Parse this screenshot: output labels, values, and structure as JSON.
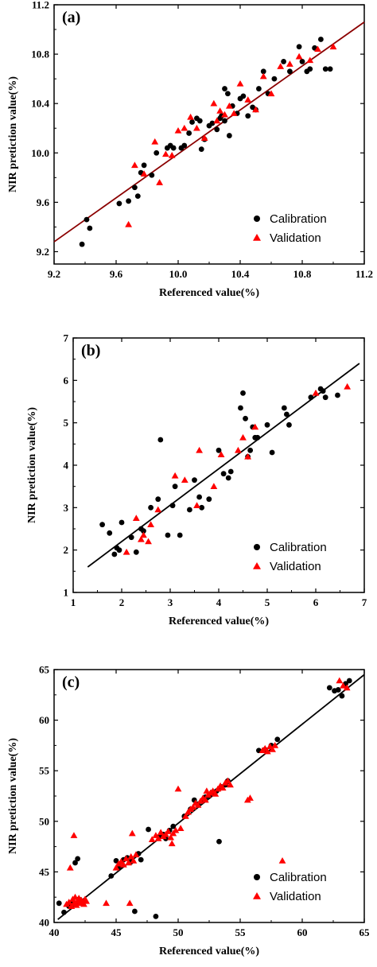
{
  "chart_data": [
    {
      "type": "scatter",
      "panel_label": "(a)",
      "xlabel": "Referenced value(%)",
      "ylabel": "NIR pretiction value(%)",
      "xlim": [
        9.2,
        11.2
      ],
      "ylim": [
        9.1,
        11.2
      ],
      "xticks": [
        "9.2",
        "9.6",
        "10.0",
        "10.4",
        "10.8",
        "11.2"
      ],
      "yticks": [
        "9.2",
        "9.6",
        "10.0",
        "10.4",
        "10.8",
        "11.2"
      ],
      "xtick_values": [
        9.2,
        9.6,
        10.0,
        10.4,
        10.8,
        11.2
      ],
      "ytick_values": [
        9.2,
        9.6,
        10.0,
        10.4,
        10.8,
        11.2
      ],
      "fit_line": {
        "x": [
          9.2,
          11.2
        ],
        "y": [
          9.28,
          11.06
        ],
        "color": "#8b0000"
      },
      "legend_position": "bottom-right",
      "series": [
        {
          "name": "Calibration",
          "marker": "circle",
          "color": "#000000",
          "x": [
            9.38,
            9.41,
            9.43,
            9.62,
            9.68,
            9.72,
            9.74,
            9.76,
            9.78,
            9.83,
            9.86,
            9.93,
            9.95,
            9.97,
            10.02,
            10.04,
            10.07,
            10.09,
            10.12,
            10.14,
            10.15,
            10.17,
            10.2,
            10.22,
            10.25,
            10.27,
            10.28,
            10.3,
            10.3,
            10.32,
            10.33,
            10.35,
            10.38,
            10.4,
            10.42,
            10.45,
            10.48,
            10.5,
            10.52,
            10.55,
            10.58,
            10.62,
            10.68,
            10.72,
            10.78,
            10.8,
            10.83,
            10.85,
            10.88,
            10.92,
            10.95,
            10.98
          ],
          "y": [
            9.26,
            9.46,
            9.39,
            9.59,
            9.61,
            9.72,
            9.65,
            9.84,
            9.9,
            9.82,
            10.0,
            10.04,
            10.06,
            10.04,
            10.04,
            10.06,
            10.16,
            10.25,
            10.28,
            10.26,
            10.03,
            10.11,
            10.22,
            10.24,
            10.19,
            10.28,
            10.3,
            10.26,
            10.52,
            10.48,
            10.14,
            10.38,
            10.32,
            10.44,
            10.46,
            10.3,
            10.37,
            10.35,
            10.52,
            10.66,
            10.48,
            10.6,
            10.74,
            10.66,
            10.86,
            10.74,
            10.66,
            10.68,
            10.85,
            10.92,
            10.68,
            10.68
          ]
        },
        {
          "name": "Validation",
          "marker": "triangle",
          "color": "#ff0000",
          "x": [
            9.68,
            9.72,
            9.78,
            9.85,
            9.88,
            9.92,
            9.96,
            10.0,
            10.04,
            10.08,
            10.12,
            10.17,
            10.23,
            10.25,
            10.27,
            10.3,
            10.33,
            10.36,
            10.4,
            10.45,
            10.5,
            10.55,
            10.6,
            10.66,
            10.72,
            10.78,
            10.85,
            10.9,
            11.0
          ],
          "y": [
            9.42,
            9.9,
            9.83,
            10.09,
            9.76,
            9.99,
            9.98,
            10.18,
            10.2,
            10.29,
            10.2,
            10.12,
            10.4,
            10.26,
            10.34,
            10.31,
            10.38,
            10.32,
            10.56,
            10.43,
            10.35,
            10.62,
            10.48,
            10.7,
            10.72,
            10.78,
            10.75,
            10.84,
            10.86
          ]
        }
      ]
    },
    {
      "type": "scatter",
      "panel_label": "(b)",
      "xlabel": "Referenced value(%)",
      "ylabel": "NIR pretiction value(%)",
      "xlim": [
        1,
        7
      ],
      "ylim": [
        1,
        7
      ],
      "xticks": [
        "1",
        "2",
        "3",
        "4",
        "5",
        "6",
        "7"
      ],
      "yticks": [
        "1",
        "2",
        "3",
        "4",
        "5",
        "6",
        "7"
      ],
      "xtick_values": [
        1,
        2,
        3,
        4,
        5,
        6,
        7
      ],
      "ytick_values": [
        1,
        2,
        3,
        4,
        5,
        6,
        7
      ],
      "fit_line": {
        "x": [
          1.3,
          6.9
        ],
        "y": [
          1.6,
          6.4
        ],
        "color": "#000000"
      },
      "legend_position": "bottom-right",
      "series": [
        {
          "name": "Calibration",
          "marker": "circle",
          "color": "#000000",
          "x": [
            1.6,
            1.75,
            1.85,
            1.9,
            1.95,
            2.0,
            2.2,
            2.3,
            2.4,
            2.45,
            2.6,
            2.75,
            2.8,
            2.95,
            3.05,
            3.1,
            3.2,
            3.4,
            3.5,
            3.6,
            3.65,
            3.8,
            4.0,
            4.1,
            4.2,
            4.25,
            4.45,
            4.5,
            4.55,
            4.6,
            4.65,
            4.7,
            4.75,
            4.8,
            5.0,
            5.1,
            5.35,
            5.4,
            5.45,
            5.9,
            6.1,
            6.15,
            6.2,
            6.45
          ],
          "y": [
            2.6,
            2.4,
            1.9,
            2.05,
            2.0,
            2.65,
            2.3,
            1.95,
            2.5,
            2.45,
            3.0,
            3.2,
            4.6,
            2.35,
            3.05,
            3.5,
            2.35,
            2.95,
            3.65,
            3.25,
            3.0,
            3.2,
            4.35,
            3.8,
            3.7,
            3.85,
            5.35,
            5.7,
            5.1,
            4.2,
            4.35,
            4.9,
            4.65,
            4.65,
            4.95,
            4.3,
            5.35,
            5.2,
            4.95,
            5.6,
            5.8,
            5.75,
            5.6,
            5.65
          ]
        },
        {
          "name": "Validation",
          "marker": "triangle",
          "color": "#ff0000",
          "x": [
            2.1,
            2.3,
            2.4,
            2.45,
            2.55,
            2.6,
            2.75,
            3.1,
            3.3,
            3.55,
            3.6,
            3.9,
            4.05,
            4.4,
            4.5,
            4.6,
            4.75,
            6.0,
            6.65
          ],
          "y": [
            1.95,
            2.75,
            2.25,
            2.35,
            2.2,
            2.6,
            2.95,
            3.75,
            3.65,
            3.05,
            4.35,
            3.5,
            4.25,
            4.35,
            4.65,
            4.2,
            4.9,
            5.7,
            5.85
          ]
        }
      ]
    },
    {
      "type": "scatter",
      "panel_label": "(c)",
      "xlabel": "Referenced value(%)",
      "ylabel": "NIR pretiction value(%)",
      "xlim": [
        40,
        65
      ],
      "ylim": [
        40,
        65
      ],
      "xticks": [
        "40",
        "45",
        "50",
        "55",
        "60",
        "65"
      ],
      "yticks": [
        "40",
        "45",
        "50",
        "55",
        "60",
        "65"
      ],
      "xtick_values": [
        40,
        45,
        50,
        55,
        60,
        65
      ],
      "ytick_values": [
        40,
        45,
        50,
        55,
        60,
        65
      ],
      "fit_line": {
        "x": [
          40.3,
          65
        ],
        "y": [
          40.3,
          64.5
        ],
        "color": "#000000"
      },
      "legend_position": "bottom-right",
      "series": [
        {
          "name": "Calibration",
          "marker": "circle",
          "color": "#000000",
          "x": [
            40.4,
            40.8,
            41.2,
            41.5,
            41.7,
            41.9,
            42.0,
            42.3,
            44.6,
            45.0,
            45.3,
            45.6,
            45.9,
            46.2,
            46.5,
            46.8,
            47.0,
            47.6,
            48.2,
            48.5,
            48.8,
            49.0,
            49.3,
            49.6,
            50.5,
            51.0,
            51.3,
            51.6,
            51.9,
            52.2,
            52.5,
            52.8,
            53.1,
            53.3,
            53.5,
            53.8,
            54.0,
            56.5,
            57.0,
            57.5,
            58.0,
            62.2,
            62.6,
            62.9,
            63.2,
            63.5,
            63.8
          ],
          "y": [
            41.9,
            41.0,
            41.6,
            41.9,
            45.9,
            46.3,
            42.3,
            42.0,
            44.6,
            46.1,
            45.5,
            46.2,
            46.4,
            46.0,
            41.1,
            46.8,
            46.2,
            49.2,
            40.6,
            48.5,
            48.7,
            48.3,
            49.1,
            49.5,
            50.5,
            51.2,
            52.1,
            51.7,
            52.0,
            52.4,
            52.5,
            52.9,
            53.0,
            48.0,
            53.4,
            53.6,
            54.0,
            57.0,
            57.1,
            57.5,
            58.1,
            63.2,
            62.9,
            63.0,
            62.4,
            63.6,
            63.9
          ]
        },
        {
          "name": "Validation",
          "marker": "triangle",
          "color": "#ff0000",
          "x": [
            41.0,
            41.2,
            41.4,
            41.5,
            41.6,
            41.7,
            41.8,
            41.9,
            42.0,
            42.1,
            42.2,
            42.3,
            42.4,
            42.5,
            42.6,
            41.6,
            41.3,
            44.2,
            45.0,
            45.2,
            45.4,
            45.6,
            45.8,
            46.0,
            46.2,
            46.4,
            46.6,
            46.1,
            46.3,
            47.9,
            48.2,
            48.4,
            48.6,
            48.8,
            49.0,
            49.2,
            49.4,
            49.6,
            49.8,
            50.2,
            49.5,
            50.6,
            50.8,
            51.0,
            51.2,
            51.4,
            51.6,
            51.8,
            52.0,
            52.2,
            52.4,
            52.6,
            52.8,
            53.0,
            53.2,
            53.4,
            53.6,
            53.8,
            54.0,
            54.2,
            50.0,
            52.3,
            55.6,
            55.8,
            56.8,
            57.0,
            57.2,
            57.4,
            57.6,
            57.8,
            58.4,
            63.0,
            63.3,
            63.6
          ],
          "y": [
            41.8,
            42.0,
            41.6,
            42.3,
            41.9,
            42.5,
            41.7,
            42.1,
            42.4,
            41.9,
            42.2,
            42.0,
            41.8,
            42.3,
            42.1,
            48.6,
            45.4,
            41.9,
            45.4,
            45.8,
            46.0,
            45.7,
            46.3,
            45.9,
            46.5,
            46.1,
            46.7,
            41.9,
            48.8,
            48.2,
            48.6,
            48.3,
            48.9,
            48.5,
            48.7,
            49.0,
            48.4,
            48.8,
            49.1,
            49.3,
            47.8,
            50.5,
            50.9,
            51.2,
            51.4,
            51.8,
            51.6,
            52.0,
            52.3,
            52.1,
            52.6,
            52.8,
            53.0,
            52.7,
            53.2,
            53.5,
            53.3,
            53.8,
            54.0,
            53.6,
            53.2,
            53.0,
            52.1,
            52.3,
            57.0,
            57.2,
            56.9,
            57.4,
            57.1,
            57.5,
            46.1,
            63.9,
            63.4,
            63.2
          ]
        }
      ]
    }
  ]
}
